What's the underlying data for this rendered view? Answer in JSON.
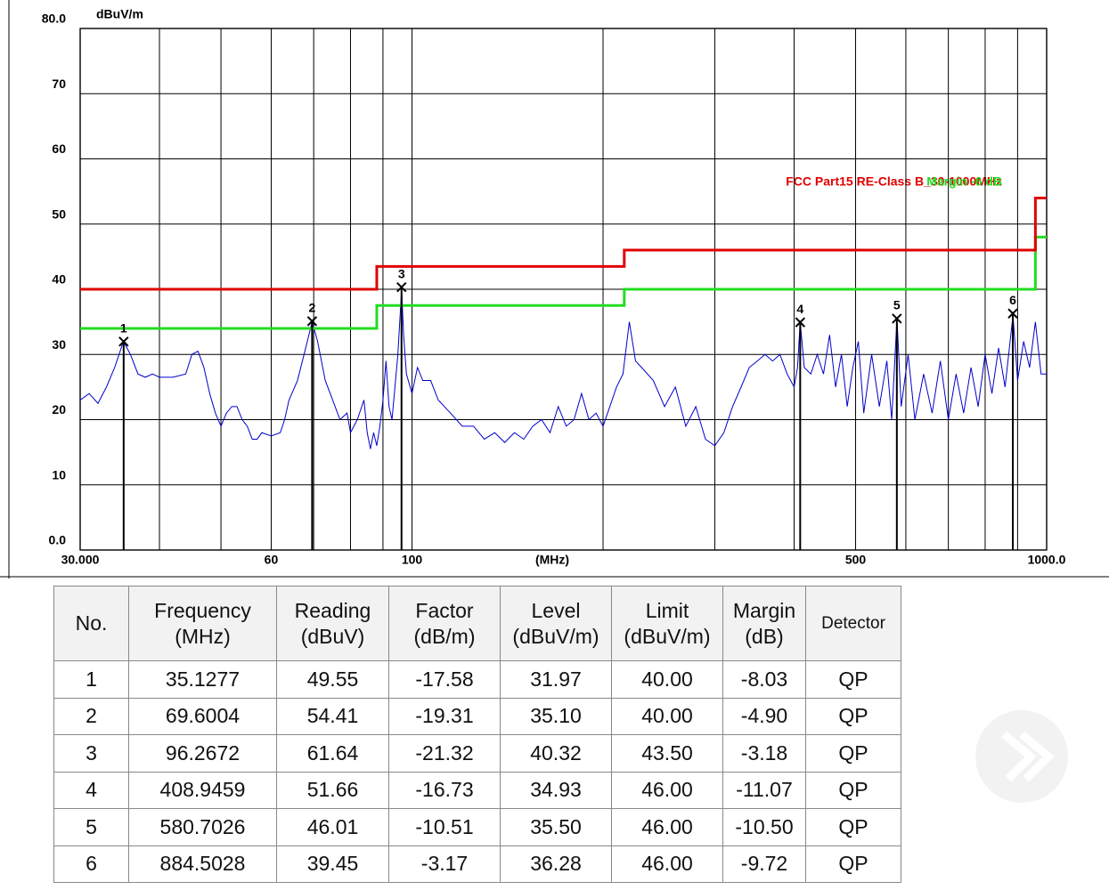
{
  "chart_data": {
    "type": "line",
    "log_x": true,
    "grid": true,
    "y_label": "dBuV/m",
    "x_label": "(MHz)",
    "xlim": [
      30,
      1000
    ],
    "ylim": [
      0,
      80
    ],
    "xticks": [
      {
        "value": 30,
        "label": "30.000"
      },
      60,
      100,
      500,
      {
        "value": 1000,
        "label": "1000.0"
      }
    ],
    "xminor": [
      40,
      50,
      70,
      80,
      90,
      200,
      300,
      400,
      600,
      700,
      800,
      900
    ],
    "yticks": [
      {
        "value": 0,
        "label": "0.0"
      },
      10,
      20,
      30,
      40,
      50,
      60,
      70,
      {
        "value": 80,
        "label": "80.0"
      }
    ],
    "series": [
      {
        "name": "FCC Part15 RE-Class B_30-1000MHz",
        "color": "#e00000",
        "step": true,
        "x": [
          30,
          88,
          88,
          216,
          216,
          960,
          960,
          1000
        ],
        "values": [
          40,
          40,
          43.5,
          43.5,
          46,
          46,
          54,
          54
        ]
      },
      {
        "name": "Margin -6 dB",
        "color": "#22dd22",
        "step": true,
        "x": [
          30,
          88,
          88,
          216,
          216,
          960,
          960,
          1000
        ],
        "values": [
          34,
          34,
          37.5,
          37.5,
          40,
          40,
          48,
          48
        ]
      },
      {
        "color": "#0000cc",
        "x": [
          30,
          31,
          32,
          33,
          34,
          35.1,
          36,
          37,
          38,
          39,
          40,
          42,
          44,
          45,
          46,
          47,
          48,
          49,
          50,
          51,
          52,
          53,
          54,
          55,
          56,
          57,
          58,
          60,
          62,
          63,
          64,
          66,
          68,
          69.6,
          71,
          73,
          75,
          77,
          79,
          80,
          82,
          84,
          85,
          86,
          87,
          88,
          89,
          90,
          91,
          92,
          93,
          94,
          95,
          96.3,
          97,
          98,
          100,
          102,
          104,
          107,
          110,
          115,
          120,
          125,
          130,
          135,
          140,
          145,
          150,
          155,
          160,
          165,
          170,
          175,
          180,
          185,
          190,
          195,
          200,
          205,
          210,
          215,
          220,
          225,
          230,
          240,
          250,
          260,
          270,
          280,
          290,
          300,
          310,
          320,
          330,
          340,
          350,
          360,
          370,
          380,
          390,
          400,
          405,
          409,
          415,
          425,
          435,
          445,
          455,
          465,
          475,
          485,
          495,
          505,
          515,
          530,
          545,
          560,
          570,
          581,
          590,
          605,
          620,
          640,
          660,
          680,
          700,
          720,
          740,
          760,
          780,
          800,
          820,
          840,
          860,
          885,
          900,
          920,
          940,
          960,
          980,
          1000
        ],
        "values": [
          23,
          24,
          22.5,
          25,
          28,
          32,
          30,
          27,
          26.5,
          27,
          26.5,
          26.5,
          27,
          30,
          30.5,
          28,
          24,
          21,
          19,
          21,
          22,
          22,
          20,
          19,
          17,
          17,
          18,
          17.5,
          18,
          20,
          23,
          26,
          31,
          35,
          32,
          26,
          23,
          20,
          21,
          18,
          20,
          23,
          18,
          15.5,
          18,
          16,
          19,
          23,
          29,
          22,
          20,
          25,
          30,
          40,
          33,
          27,
          24,
          28,
          26,
          26,
          23,
          21,
          19,
          19,
          17,
          18,
          16.5,
          18,
          17,
          19,
          20,
          18,
          22,
          19,
          20,
          24,
          20,
          21,
          19,
          22,
          25,
          27,
          35,
          29,
          28,
          26,
          22,
          25,
          19,
          22,
          17,
          16,
          18,
          22,
          25,
          28,
          29,
          30,
          29,
          30,
          27,
          25,
          28,
          35,
          28,
          27,
          30,
          27,
          33,
          25,
          30,
          22,
          28,
          32,
          21,
          30,
          22,
          29,
          20,
          35.5,
          22,
          30,
          20,
          27,
          21,
          29,
          20,
          27,
          21,
          28,
          22,
          30,
          24,
          31,
          25,
          36,
          26,
          32,
          28,
          35,
          27,
          27
        ]
      }
    ]
  },
  "table": {
    "header": [
      [
        "No."
      ],
      [
        "Frequency",
        "(MHz)"
      ],
      [
        "Reading",
        "(dBuV)"
      ],
      [
        "Factor",
        "(dB/m)"
      ],
      [
        "Level",
        "(dBuV/m)"
      ],
      [
        "Limit",
        "(dBuV/m)"
      ],
      [
        "Margin",
        "(dB)"
      ],
      [
        "Detector"
      ]
    ],
    "rows": [
      [
        "1",
        "35.1277",
        "49.55",
        "-17.58",
        "31.97",
        "40.00",
        "-8.03",
        "QP"
      ],
      [
        "2",
        "69.6004",
        "54.41",
        "-19.31",
        "35.10",
        "40.00",
        "-4.90",
        "QP"
      ],
      [
        "3",
        "96.2672",
        "61.64",
        "-21.32",
        "40.32",
        "43.50",
        "-3.18",
        "QP"
      ],
      [
        "4",
        "408.9459",
        "51.66",
        "-16.73",
        "34.93",
        "46.00",
        "-11.07",
        "QP"
      ],
      [
        "5",
        "580.7026",
        "46.01",
        "-10.51",
        "35.50",
        "46.00",
        "-10.50",
        "QP"
      ],
      [
        "6",
        "884.5028",
        "39.45",
        "-3.17",
        "36.28",
        "46.00",
        "-9.72",
        "QP"
      ]
    ]
  }
}
